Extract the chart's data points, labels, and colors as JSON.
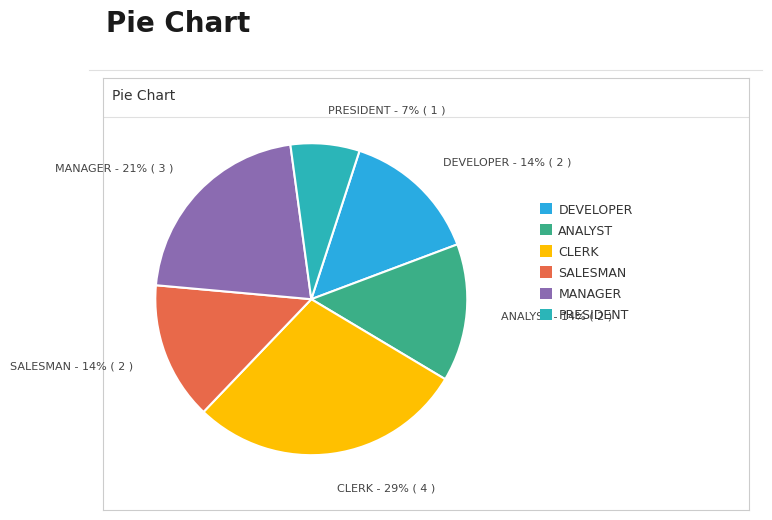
{
  "title": "Pie Chart",
  "subtitle": "Pie Chart",
  "labels": [
    "DEVELOPER",
    "ANALYST",
    "CLERK",
    "SALESMAN",
    "MANAGER",
    "PRESIDENT"
  ],
  "values": [
    2,
    2,
    4,
    2,
    3,
    1
  ],
  "percentages": [
    14,
    14,
    29,
    14,
    21,
    7
  ],
  "counts": [
    2,
    2,
    4,
    2,
    3,
    1
  ],
  "colors": [
    "#29ABE2",
    "#3BAF87",
    "#FFC000",
    "#E8694A",
    "#8B6BB1",
    "#2BB5B8"
  ],
  "legend_colors": [
    "#29ABE2",
    "#3BAF87",
    "#FFC000",
    "#E8694A",
    "#8B6BB1",
    "#2BB5B8"
  ],
  "background_color": "#ffffff",
  "panel_background": "#ffffff",
  "panel_border_color": "#cccccc",
  "title_fontsize": 20,
  "subtitle_fontsize": 10,
  "label_fontsize": 8,
  "legend_fontsize": 9,
  "startangle": 72,
  "fig_width": 6.73,
  "fig_height": 5.27
}
